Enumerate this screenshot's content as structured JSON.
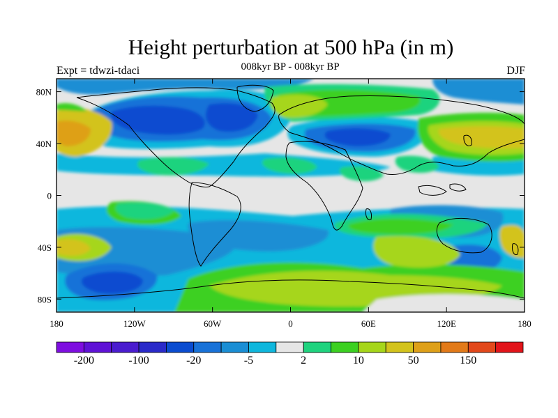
{
  "title": "Height perturbation at 500 hPa (in m)",
  "left_label": "Expt = tdwzi-tdaci",
  "center_label": "008kyr BP - 008kyr BP",
  "right_label": "DJF",
  "axes": {
    "x_ticks": [
      {
        "label": "180",
        "lon": -180
      },
      {
        "label": "120W",
        "lon": -120
      },
      {
        "label": "60W",
        "lon": -60
      },
      {
        "label": "0",
        "lon": 0
      },
      {
        "label": "60E",
        "lon": 60
      },
      {
        "label": "120E",
        "lon": 120
      },
      {
        "label": "180",
        "lon": 180
      }
    ],
    "y_ticks": [
      {
        "label": "80N",
        "lat": 80
      },
      {
        "label": "40N",
        "lat": 40
      },
      {
        "label": "0",
        "lat": 0
      },
      {
        "label": "40S",
        "lat": -40
      },
      {
        "label": "80S",
        "lat": -80
      }
    ],
    "lon_range": [
      -180,
      180
    ],
    "lat_range": [
      -90,
      90
    ]
  },
  "colorbar": {
    "colors": [
      "#7e0ee0",
      "#5f12d6",
      "#4a1ccf",
      "#2a2ac9",
      "#0a4cd0",
      "#1872d8",
      "#1a8ed4",
      "#0fb7dd",
      "#e6e6e6",
      "#1fd37e",
      "#3cd021",
      "#a6d61a",
      "#d3c31c",
      "#dea019",
      "#e27a19",
      "#e2481b",
      "#e2141a"
    ],
    "labels": [
      {
        "text": "-200",
        "boundary": 1
      },
      {
        "text": "-100",
        "boundary": 3
      },
      {
        "text": "-20",
        "boundary": 5
      },
      {
        "text": "-5",
        "boundary": 7
      },
      {
        "text": "2",
        "boundary": 9
      },
      {
        "text": "10",
        "boundary": 11
      },
      {
        "text": "50",
        "boundary": 13
      },
      {
        "text": "150",
        "boundary": 15
      }
    ]
  }
}
